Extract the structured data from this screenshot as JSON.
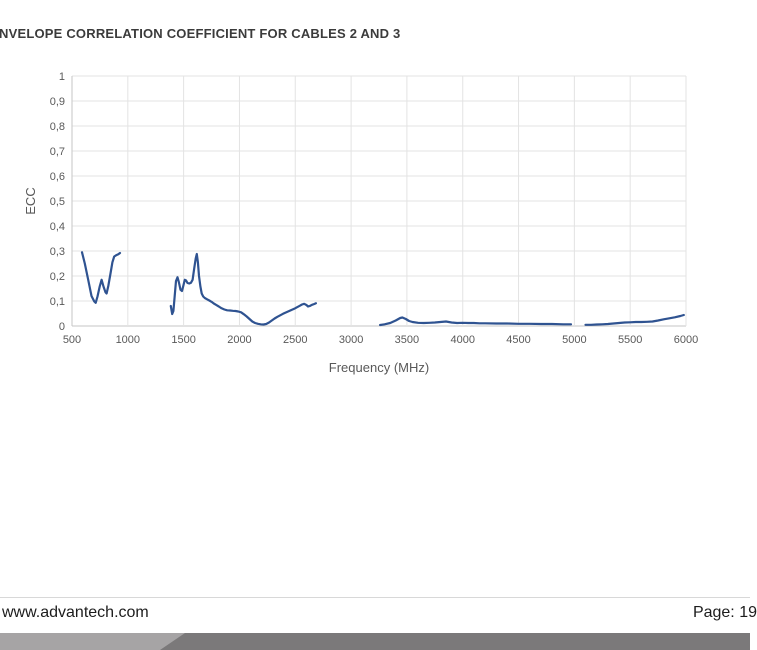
{
  "title": "NVELOPE CORRELATION COEFFICIENT FOR CABLES 2 AND 3",
  "chart_data": {
    "type": "line",
    "title": "NVELOPE CORRELATION COEFFICIENT FOR CABLES 2 AND 3",
    "xlabel": "Frequency (MHz)",
    "ylabel": "ECC",
    "xlim": [
      500,
      6000
    ],
    "ylim": [
      0,
      1
    ],
    "grid": true,
    "legend": "none",
    "colors": {
      "line": "#2f5391",
      "grid": "#e3e3e3",
      "axis": "#c6c6c6",
      "tick_text": "#595959",
      "axis_text": "#595959"
    },
    "x_ticks": [
      {
        "value": 500,
        "label": "500"
      },
      {
        "value": 1000,
        "label": "1000"
      },
      {
        "value": 1500,
        "label": "1500"
      },
      {
        "value": 2000,
        "label": "2000"
      },
      {
        "value": 2500,
        "label": "2500"
      },
      {
        "value": 3000,
        "label": "3000"
      },
      {
        "value": 3500,
        "label": "3500"
      },
      {
        "value": 4000,
        "label": "4000"
      },
      {
        "value": 4500,
        "label": "4500"
      },
      {
        "value": 5000,
        "label": "5000"
      },
      {
        "value": 5500,
        "label": "5500"
      },
      {
        "value": 6000,
        "label": "6000"
      }
    ],
    "y_ticks": [
      {
        "value": 0,
        "label": "0"
      },
      {
        "value": 0.1,
        "label": "0,1"
      },
      {
        "value": 0.2,
        "label": "0,2"
      },
      {
        "value": 0.3,
        "label": "0,3"
      },
      {
        "value": 0.4,
        "label": "0,4"
      },
      {
        "value": 0.5,
        "label": "0,5"
      },
      {
        "value": 0.6,
        "label": "0,6"
      },
      {
        "value": 0.7,
        "label": "0,7"
      },
      {
        "value": 0.8,
        "label": "0,8"
      },
      {
        "value": 0.9,
        "label": "0,9"
      },
      {
        "value": 1,
        "label": "1"
      }
    ],
    "series": [
      {
        "segments": [
          [
            [
              590,
              0.295
            ],
            [
              615,
              0.25
            ],
            [
              645,
              0.185
            ],
            [
              675,
              0.12
            ],
            [
              700,
              0.098
            ],
            [
              712,
              0.093
            ],
            [
              728,
              0.118
            ],
            [
              748,
              0.158
            ],
            [
              765,
              0.185
            ],
            [
              782,
              0.158
            ],
            [
              800,
              0.135
            ],
            [
              810,
              0.13
            ],
            [
              825,
              0.16
            ],
            [
              845,
              0.21
            ],
            [
              862,
              0.255
            ],
            [
              878,
              0.278
            ],
            [
              895,
              0.283
            ],
            [
              915,
              0.287
            ],
            [
              930,
              0.292
            ]
          ],
          [
            [
              1385,
              0.08
            ],
            [
              1398,
              0.048
            ],
            [
              1408,
              0.06
            ],
            [
              1420,
              0.12
            ],
            [
              1432,
              0.18
            ],
            [
              1445,
              0.195
            ],
            [
              1458,
              0.175
            ],
            [
              1472,
              0.145
            ],
            [
              1485,
              0.14
            ],
            [
              1498,
              0.162
            ],
            [
              1510,
              0.185
            ],
            [
              1522,
              0.182
            ],
            [
              1535,
              0.172
            ],
            [
              1550,
              0.17
            ],
            [
              1565,
              0.173
            ],
            [
              1580,
              0.185
            ],
            [
              1595,
              0.23
            ],
            [
              1608,
              0.27
            ],
            [
              1618,
              0.288
            ],
            [
              1628,
              0.255
            ],
            [
              1638,
              0.2
            ],
            [
              1650,
              0.158
            ],
            [
              1662,
              0.13
            ],
            [
              1675,
              0.118
            ],
            [
              1690,
              0.112
            ],
            [
              1710,
              0.107
            ],
            [
              1730,
              0.102
            ],
            [
              1750,
              0.097
            ],
            [
              1770,
              0.09
            ],
            [
              1790,
              0.085
            ],
            [
              1815,
              0.078
            ],
            [
              1840,
              0.071
            ],
            [
              1865,
              0.066
            ],
            [
              1890,
              0.063
            ],
            [
              1915,
              0.062
            ],
            [
              1940,
              0.061
            ],
            [
              1965,
              0.06
            ],
            [
              1990,
              0.058
            ],
            [
              2015,
              0.055
            ],
            [
              2040,
              0.047
            ],
            [
              2065,
              0.038
            ],
            [
              2090,
              0.028
            ],
            [
              2115,
              0.018
            ],
            [
              2140,
              0.012
            ],
            [
              2165,
              0.009
            ],
            [
              2190,
              0.007
            ],
            [
              2215,
              0.006
            ],
            [
              2240,
              0.008
            ],
            [
              2265,
              0.014
            ],
            [
              2290,
              0.022
            ],
            [
              2315,
              0.03
            ],
            [
              2340,
              0.037
            ],
            [
              2365,
              0.043
            ],
            [
              2390,
              0.049
            ],
            [
              2415,
              0.054
            ],
            [
              2440,
              0.059
            ],
            [
              2465,
              0.064
            ],
            [
              2490,
              0.069
            ],
            [
              2515,
              0.075
            ],
            [
              2540,
              0.081
            ],
            [
              2560,
              0.086
            ],
            [
              2580,
              0.089
            ],
            [
              2600,
              0.084
            ],
            [
              2615,
              0.078
            ],
            [
              2630,
              0.08
            ],
            [
              2650,
              0.085
            ],
            [
              2670,
              0.088
            ],
            [
              2685,
              0.091
            ]
          ],
          [
            [
              3260,
              0.004
            ],
            [
              3300,
              0.007
            ],
            [
              3350,
              0.012
            ],
            [
              3400,
              0.022
            ],
            [
              3440,
              0.032
            ],
            [
              3460,
              0.034
            ],
            [
              3490,
              0.028
            ],
            [
              3520,
              0.02
            ],
            [
              3550,
              0.016
            ],
            [
              3600,
              0.013
            ],
            [
              3650,
              0.012
            ],
            [
              3700,
              0.013
            ],
            [
              3750,
              0.014
            ],
            [
              3800,
              0.016
            ],
            [
              3850,
              0.018
            ],
            [
              3900,
              0.014
            ],
            [
              3950,
              0.012
            ],
            [
              4000,
              0.013
            ],
            [
              4050,
              0.012
            ],
            [
              4100,
              0.012
            ],
            [
              4150,
              0.011
            ],
            [
              4200,
              0.011
            ],
            [
              4300,
              0.01
            ],
            [
              4400,
              0.01
            ],
            [
              4500,
              0.009
            ],
            [
              4600,
              0.009
            ],
            [
              4700,
              0.008
            ],
            [
              4800,
              0.008
            ],
            [
              4900,
              0.007
            ],
            [
              4970,
              0.007
            ]
          ],
          [
            [
              5100,
              0.005
            ],
            [
              5150,
              0.005
            ],
            [
              5200,
              0.006
            ],
            [
              5250,
              0.007
            ],
            [
              5300,
              0.008
            ],
            [
              5350,
              0.01
            ],
            [
              5400,
              0.012
            ],
            [
              5450,
              0.014
            ],
            [
              5500,
              0.015
            ],
            [
              5550,
              0.016
            ],
            [
              5600,
              0.016
            ],
            [
              5650,
              0.017
            ],
            [
              5700,
              0.018
            ],
            [
              5750,
              0.022
            ],
            [
              5800,
              0.027
            ],
            [
              5850,
              0.031
            ],
            [
              5900,
              0.035
            ],
            [
              5950,
              0.04
            ],
            [
              5980,
              0.044
            ]
          ]
        ]
      }
    ]
  },
  "footer": {
    "website": "www.advantech.com",
    "page_label": "Page: 19"
  },
  "bottom_bar": {
    "light_color": "#a6a4a5",
    "dark_color": "#7b797a"
  }
}
